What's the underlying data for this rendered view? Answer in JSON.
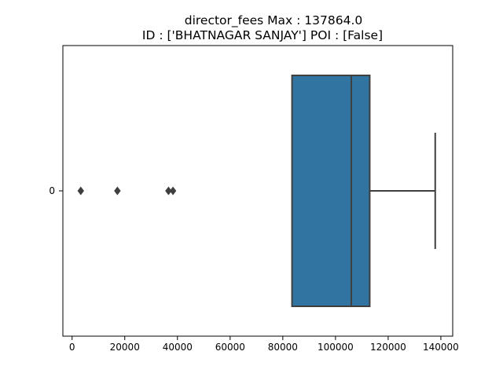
{
  "chart_data": {
    "type": "box",
    "title_line1": "director_fees  Max : 137864.0",
    "title_line2": "ID : ['BHATNAGAR SANJAY']  POI : [False]",
    "orientation": "horizontal",
    "xlim": [
      -3500,
      144500
    ],
    "xticks": [
      0,
      20000,
      40000,
      60000,
      80000,
      100000,
      120000,
      140000
    ],
    "xtick_labels": [
      "0",
      "20000",
      "40000",
      "60000",
      "80000",
      "100000",
      "120000",
      "140000"
    ],
    "categories": [
      "0"
    ],
    "box": {
      "whisker_low": 83500,
      "q1": 83500,
      "median": 106000,
      "q3": 113000,
      "whisker_high": 137864
    },
    "outliers": [
      3300,
      17200,
      36600,
      38300
    ],
    "colors": {
      "box_fill": "#3274a1",
      "box_edge": "#3f3f3f",
      "axes": "#000000"
    },
    "grid": false,
    "legend": "none"
  }
}
